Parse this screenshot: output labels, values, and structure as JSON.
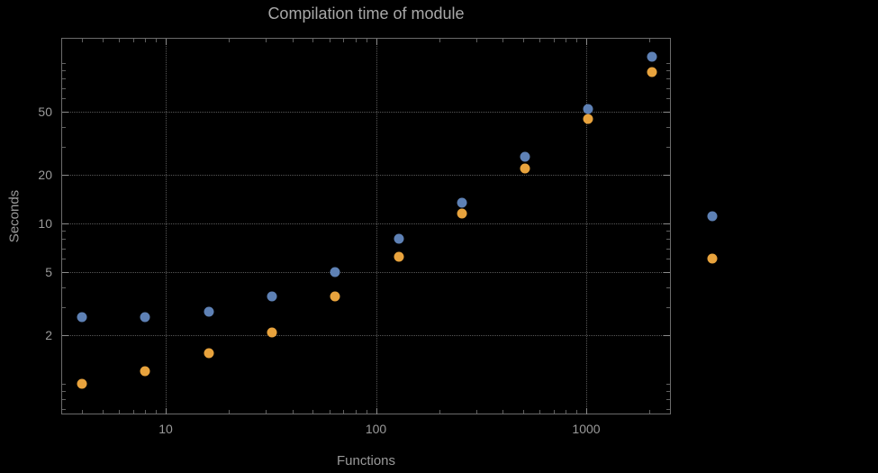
{
  "chart_data": {
    "type": "scatter",
    "title": "Compilation time of module",
    "xlabel": "Functions",
    "ylabel": "Seconds",
    "x_scale": "log",
    "y_scale": "log",
    "grid": "dotted",
    "xlim": [
      3.2,
      2560
    ],
    "ylim": [
      0.64,
      144
    ],
    "x_ticks": [
      "10",
      "100",
      "1000"
    ],
    "x_tick_values": [
      10,
      100,
      1000
    ],
    "y_ticks": [
      "2",
      "5",
      "10",
      "20",
      "50"
    ],
    "y_tick_values": [
      2,
      5,
      10,
      20,
      50
    ],
    "x": [
      4,
      8,
      16,
      32,
      64,
      128,
      256,
      512,
      1024,
      2048
    ],
    "series": [
      {
        "name": "blue",
        "color": "#5e81b5",
        "values": [
          2.6,
          2.6,
          2.8,
          3.5,
          5.0,
          8.0,
          13.5,
          26,
          52,
          110
        ]
      },
      {
        "name": "orange",
        "color": "#e8a33d",
        "values": [
          1.0,
          1.2,
          1.55,
          2.1,
          3.5,
          6.2,
          11.5,
          22,
          45,
          88
        ]
      }
    ],
    "legend": {
      "position": "right-outside",
      "entries": [
        {
          "series": "blue",
          "label": ""
        },
        {
          "series": "orange",
          "label": ""
        }
      ]
    }
  }
}
